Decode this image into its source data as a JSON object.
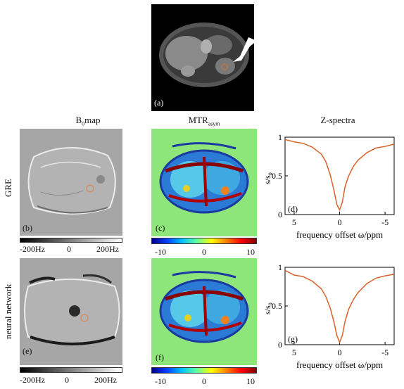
{
  "panel_a": {
    "letter": "(a)"
  },
  "columns": {
    "b0": {
      "title": "B",
      "sub": "0",
      "title_rest": "map"
    },
    "mtr": {
      "title": "MTR",
      "sub": "asym"
    },
    "z": {
      "title": "Z-spectra"
    }
  },
  "rows": {
    "gre": "GRE",
    "nn": "neural network"
  },
  "letters": {
    "b": "(b)",
    "c": "(c)",
    "d": "(d)",
    "e": "(e)",
    "f": "(f)",
    "g": "(g)"
  },
  "b0_colorbar_row1": {
    "left": "-200Hz",
    "mid": "0",
    "right": "200Hz"
  },
  "b0_colorbar_row2": {
    "left": "-200Hz",
    "mid": "0",
    "right": "200Hz"
  },
  "mtr_colorbar": {
    "left": "-10",
    "mid": "0",
    "right": "10"
  },
  "colors": {
    "curve": "#d9622b",
    "mtr_bg": "#8ee67a",
    "b0_bg": "#a6a6a6"
  },
  "chart_data": [
    {
      "type": "line",
      "xlabel": "frequency offset ω/ppm",
      "ylabel": "s/s",
      "ylabel_sub": "0",
      "xlim": [
        6,
        -6
      ],
      "ylim": [
        0,
        1
      ],
      "xticks": [
        "5",
        "0",
        "-5"
      ],
      "yticks": [
        "0",
        "0.5",
        "1"
      ],
      "x": [
        6,
        5,
        4,
        3,
        2,
        1.5,
        1,
        0.6,
        0.3,
        0,
        -0.3,
        -0.6,
        -1,
        -1.5,
        -2,
        -3,
        -4,
        -5,
        -6
      ],
      "y": [
        0.97,
        0.94,
        0.92,
        0.87,
        0.78,
        0.68,
        0.5,
        0.3,
        0.13,
        0.06,
        0.16,
        0.36,
        0.5,
        0.62,
        0.7,
        0.8,
        0.86,
        0.88,
        0.91
      ]
    },
    {
      "type": "line",
      "xlabel": "frequency offset ω/ppm",
      "ylabel": "s/s",
      "ylabel_sub": "0",
      "xlim": [
        6,
        -6
      ],
      "ylim": [
        0,
        1
      ],
      "xticks": [
        "5",
        "0",
        "-5"
      ],
      "yticks": [
        "0",
        "0.5",
        "1"
      ],
      "x": [
        6,
        5,
        4,
        3,
        2,
        1.5,
        1,
        0.6,
        0.3,
        0,
        -0.3,
        -0.6,
        -1,
        -1.5,
        -2,
        -3,
        -4,
        -5,
        -6
      ],
      "y": [
        0.96,
        0.9,
        0.88,
        0.82,
        0.72,
        0.62,
        0.46,
        0.28,
        0.12,
        0.03,
        0.12,
        0.3,
        0.46,
        0.58,
        0.67,
        0.79,
        0.86,
        0.89,
        0.91
      ]
    }
  ]
}
